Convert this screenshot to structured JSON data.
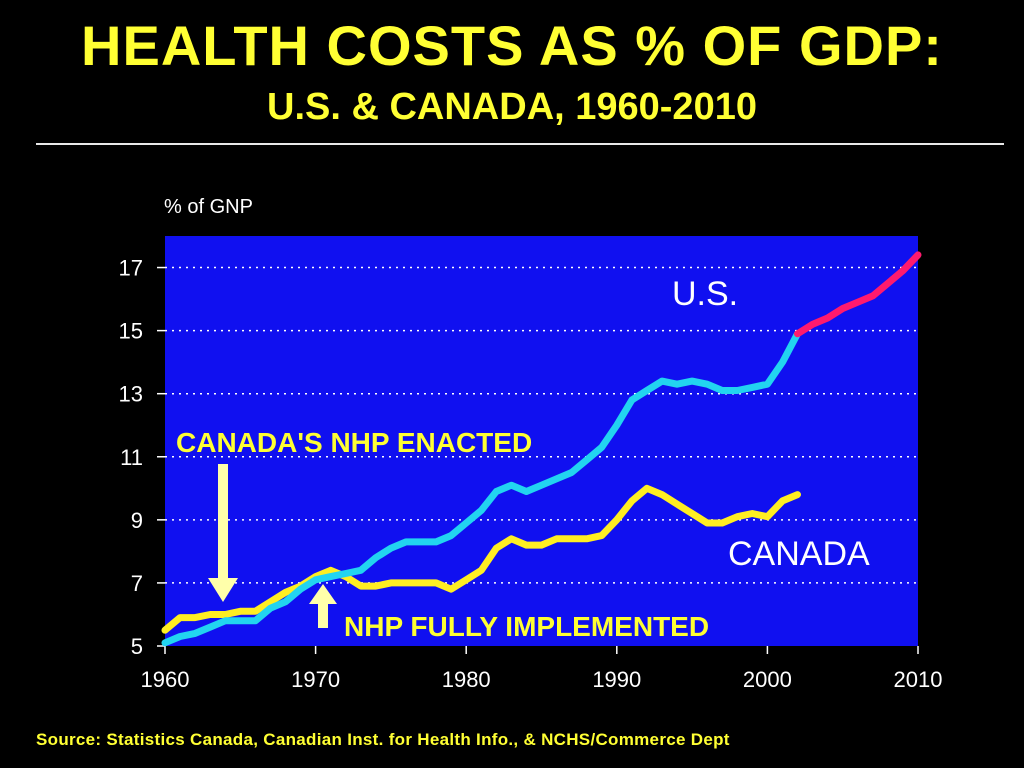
{
  "header": {
    "title": "HEALTH COSTS AS % OF GDP:",
    "subtitle": "U.S. & CANADA, 1960-2010"
  },
  "source": "Source: Statistics Canada, Canadian Inst. for Health Info., & NCHS/Commerce Dept",
  "colors": {
    "plot_bg": "#1010f0",
    "us_actual": "#22d4f0",
    "us_projected": "#ff1a6e",
    "canada": "#ffee22",
    "text_yellow": "#ffff33"
  },
  "chart_data": {
    "type": "line",
    "title": "HEALTH COSTS AS % OF GDP:",
    "subtitle": "U.S. & CANADA, 1960-2010",
    "ylabel": "% of GNP",
    "xlabel": "",
    "xlim": [
      1960,
      2010
    ],
    "ylim": [
      5,
      18
    ],
    "x_ticks": [
      1960,
      1970,
      1980,
      1990,
      2000,
      2010
    ],
    "y_ticks": [
      5,
      7,
      9,
      11,
      13,
      15,
      17
    ],
    "grid": "horizontal dotted",
    "series": [
      {
        "name": "U.S.",
        "points": [
          [
            1960,
            5.1
          ],
          [
            1961,
            5.3
          ],
          [
            1962,
            5.4
          ],
          [
            1963,
            5.6
          ],
          [
            1964,
            5.8
          ],
          [
            1965,
            5.8
          ],
          [
            1966,
            5.8
          ],
          [
            1967,
            6.2
          ],
          [
            1968,
            6.4
          ],
          [
            1969,
            6.8
          ],
          [
            1970,
            7.1
          ],
          [
            1971,
            7.2
          ],
          [
            1972,
            7.3
          ],
          [
            1973,
            7.4
          ],
          [
            1974,
            7.8
          ],
          [
            1975,
            8.1
          ],
          [
            1976,
            8.3
          ],
          [
            1977,
            8.3
          ],
          [
            1978,
            8.3
          ],
          [
            1979,
            8.5
          ],
          [
            1980,
            8.9
          ],
          [
            1981,
            9.3
          ],
          [
            1982,
            9.9
          ],
          [
            1983,
            10.1
          ],
          [
            1984,
            9.9
          ],
          [
            1985,
            10.1
          ],
          [
            1986,
            10.3
          ],
          [
            1987,
            10.5
          ],
          [
            1988,
            10.9
          ],
          [
            1989,
            11.3
          ],
          [
            1990,
            12.0
          ],
          [
            1991,
            12.8
          ],
          [
            1992,
            13.1
          ],
          [
            1993,
            13.4
          ],
          [
            1994,
            13.3
          ],
          [
            1995,
            13.4
          ],
          [
            1996,
            13.3
          ],
          [
            1997,
            13.1
          ],
          [
            1998,
            13.1
          ],
          [
            1999,
            13.2
          ],
          [
            2000,
            13.3
          ],
          [
            2001,
            14.0
          ],
          [
            2002,
            14.9
          ]
        ]
      },
      {
        "name": "U.S. (projected)",
        "points": [
          [
            2002,
            14.9
          ],
          [
            2003,
            15.2
          ],
          [
            2004,
            15.4
          ],
          [
            2005,
            15.7
          ],
          [
            2006,
            15.9
          ],
          [
            2007,
            16.1
          ],
          [
            2008,
            16.5
          ],
          [
            2009,
            16.9
          ],
          [
            2010,
            17.4
          ]
        ]
      },
      {
        "name": "CANADA",
        "points": [
          [
            1960,
            5.5
          ],
          [
            1961,
            5.9
          ],
          [
            1962,
            5.9
          ],
          [
            1963,
            6.0
          ],
          [
            1964,
            6.0
          ],
          [
            1965,
            6.1
          ],
          [
            1966,
            6.1
          ],
          [
            1967,
            6.4
          ],
          [
            1968,
            6.7
          ],
          [
            1969,
            6.9
          ],
          [
            1970,
            7.2
          ],
          [
            1971,
            7.4
          ],
          [
            1972,
            7.2
          ],
          [
            1973,
            6.9
          ],
          [
            1974,
            6.9
          ],
          [
            1975,
            7.0
          ],
          [
            1976,
            7.0
          ],
          [
            1977,
            7.0
          ],
          [
            1978,
            7.0
          ],
          [
            1979,
            6.8
          ],
          [
            1980,
            7.1
          ],
          [
            1981,
            7.4
          ],
          [
            1982,
            8.1
          ],
          [
            1983,
            8.4
          ],
          [
            1984,
            8.2
          ],
          [
            1985,
            8.2
          ],
          [
            1986,
            8.4
          ],
          [
            1987,
            8.4
          ],
          [
            1988,
            8.4
          ],
          [
            1989,
            8.5
          ],
          [
            1990,
            9.0
          ],
          [
            1991,
            9.6
          ],
          [
            1992,
            10.0
          ],
          [
            1993,
            9.8
          ],
          [
            1994,
            9.5
          ],
          [
            1995,
            9.2
          ],
          [
            1996,
            8.9
          ],
          [
            1997,
            8.9
          ],
          [
            1998,
            9.1
          ],
          [
            1999,
            9.2
          ],
          [
            2000,
            9.1
          ],
          [
            2001,
            9.6
          ],
          [
            2002,
            9.8
          ]
        ]
      }
    ],
    "annotations": {
      "us_label": "U.S.",
      "canada_label": "CANADA",
      "nhp_enacted": "CANADA'S NHP ENACTED",
      "nhp_implemented": "NHP FULLY IMPLEMENTED"
    }
  }
}
